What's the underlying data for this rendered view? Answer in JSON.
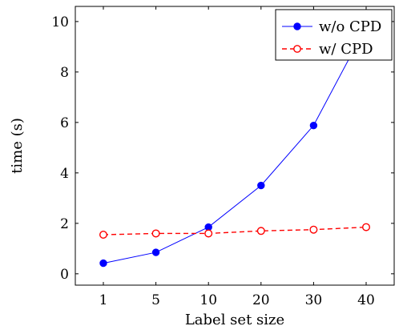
{
  "chart_data": {
    "type": "line",
    "title": "",
    "xlabel": "Label set size",
    "ylabel": "time (s)",
    "categories": [
      "1",
      "5",
      "10",
      "20",
      "30",
      "40"
    ],
    "ylim": [
      -0.45,
      10.6
    ],
    "yticks": [
      "0",
      "2",
      "4",
      "6",
      "8",
      "10"
    ],
    "grid": false,
    "legend_position": "top-right",
    "series": [
      {
        "name": "w/o CPD",
        "values": [
          0.42,
          0.85,
          1.85,
          3.5,
          5.88,
          9.8
        ],
        "color": "#0000ff",
        "line_style": "solid",
        "marker": "filled-circle"
      },
      {
        "name": "w/ CPD",
        "values": [
          1.55,
          1.6,
          1.6,
          1.7,
          1.75,
          1.85
        ],
        "color": "#ff0000",
        "line_style": "dashed",
        "marker": "open-circle"
      }
    ]
  }
}
